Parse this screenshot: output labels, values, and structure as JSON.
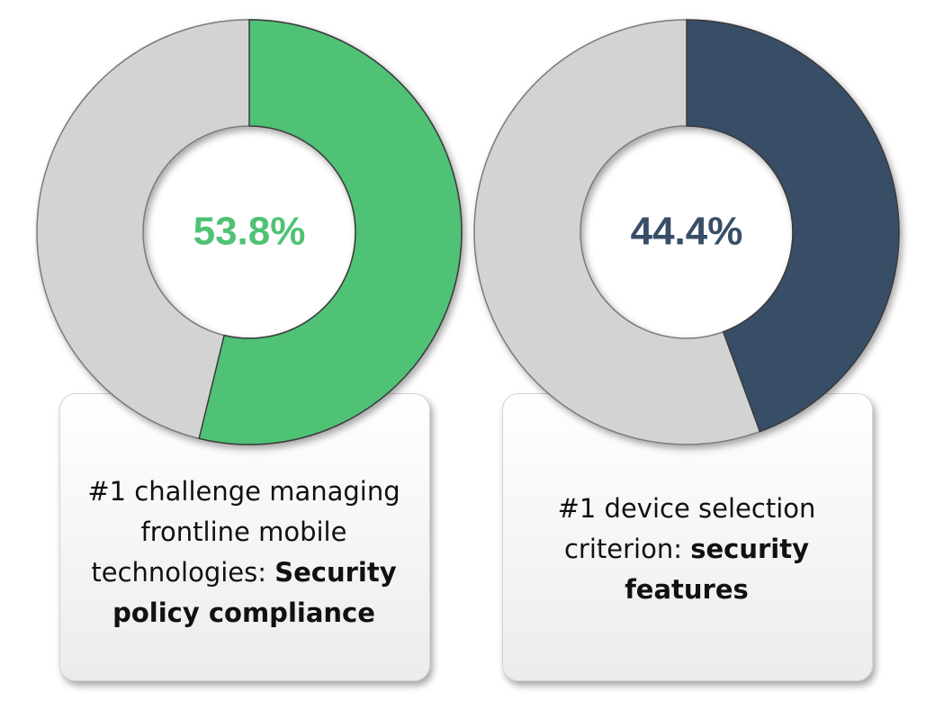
{
  "chart_data": [
    {
      "type": "donut",
      "values": [
        53.8
      ],
      "value_labels": [
        "53.8%"
      ],
      "color": "#4fc274",
      "caption": "#1 challenge managing frontline mobile technologies:",
      "caption_emphasis": "Security policy compliance"
    },
    {
      "type": "donut",
      "values": [
        44.4
      ],
      "value_labels": [
        "44.4%"
      ],
      "color": "#384e66",
      "caption": "#1 device selection criterion:",
      "caption_emphasis": "security features"
    }
  ]
}
